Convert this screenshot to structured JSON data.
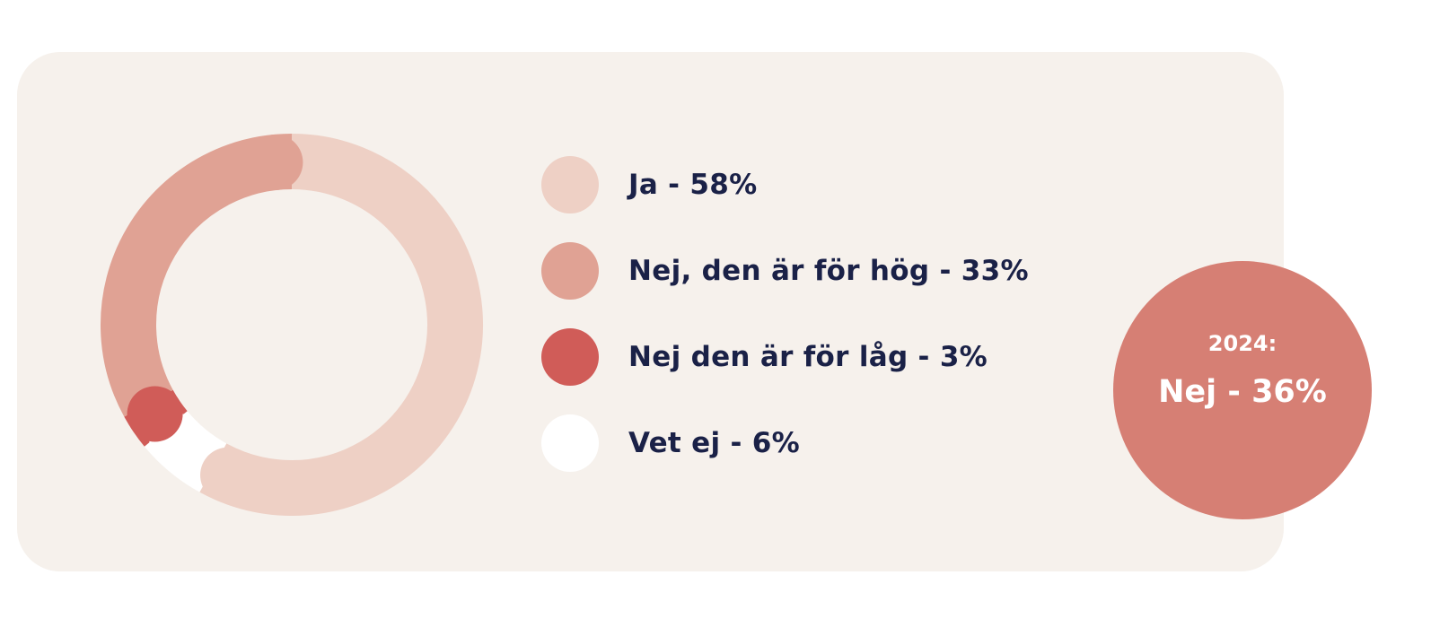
{
  "chart_data": {
    "type": "pie",
    "variant": "donut",
    "categories": [
      "Ja",
      "Vet ej",
      "Nej den är för låg",
      "Nej, den är för hög"
    ],
    "values": [
      58,
      6,
      3,
      33
    ],
    "colors": [
      "#eed0c5",
      "#ffffff",
      "#d05c58",
      "#e0a294"
    ],
    "legend": [
      {
        "label": "Ja - 58%",
        "color": "#eed0c5"
      },
      {
        "label": "Nej, den är för hög - 33%",
        "color": "#e0a294"
      },
      {
        "label": "Nej den är för låg - 3%",
        "color": "#d05c58"
      },
      {
        "label": "Vet ej - 6%",
        "color": "#ffffff"
      }
    ],
    "legend_position": "right"
  },
  "badge": {
    "year": "2024:",
    "value": "Nej - 36%",
    "color": "#d67f74"
  }
}
